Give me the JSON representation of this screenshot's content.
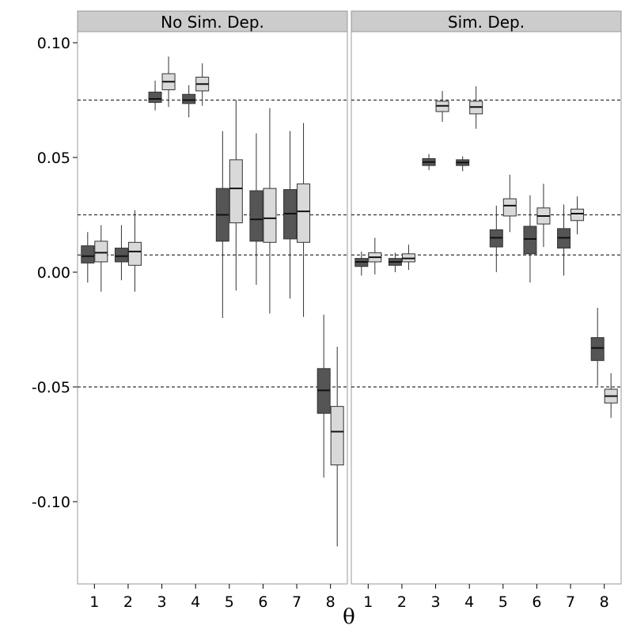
{
  "chart_data": {
    "type": "boxplot",
    "title": "",
    "xlabel": "θ",
    "ylabel": "",
    "ylim": [
      -0.14,
      0.115
    ],
    "grid": false,
    "legend": "none",
    "categories": [
      "1",
      "2",
      "3",
      "4",
      "5",
      "6",
      "7",
      "8"
    ],
    "y_ticks": [
      {
        "value": 0.1,
        "label": "0.10"
      },
      {
        "value": 0.05,
        "label": "0.05"
      },
      {
        "value": 0.0,
        "label": "0.00"
      },
      {
        "value": -0.05,
        "label": "-0.05"
      },
      {
        "value": -0.1,
        "label": "-0.10"
      }
    ],
    "reference_lines": [
      0.075,
      0.025,
      0.0075,
      -0.05
    ],
    "colors": {
      "dark_box": "#555555",
      "light_box": "#d9d9d9",
      "strip": "#cccccc",
      "panel_border": "#999999"
    },
    "panels": [
      {
        "title": "No Sim. Dep.",
        "series": [
          {
            "fill": "dark",
            "boxes": [
              {
                "min": -0.0045,
                "q1": 0.004,
                "median": 0.007,
                "q3": 0.0115,
                "max": 0.0175
              },
              {
                "min": -0.0035,
                "q1": 0.0045,
                "median": 0.007,
                "q3": 0.0105,
                "max": 0.0205
              },
              {
                "min": 0.0705,
                "q1": 0.074,
                "median": 0.0755,
                "q3": 0.0785,
                "max": 0.0835
              },
              {
                "min": 0.0675,
                "q1": 0.0735,
                "median": 0.075,
                "q3": 0.0775,
                "max": 0.0815
              },
              {
                "min": -0.02,
                "q1": 0.0135,
                "median": 0.025,
                "q3": 0.0365,
                "max": 0.0615
              },
              {
                "min": -0.0055,
                "q1": 0.0135,
                "median": 0.023,
                "q3": 0.0355,
                "max": 0.0605
              },
              {
                "min": -0.0115,
                "q1": 0.0145,
                "median": 0.0255,
                "q3": 0.036,
                "max": 0.0615
              },
              {
                "min": -0.0895,
                "q1": -0.0615,
                "median": -0.0515,
                "q3": -0.042,
                "max": -0.0185
              }
            ]
          },
          {
            "fill": "light",
            "boxes": [
              {
                "min": -0.0085,
                "q1": 0.0045,
                "median": 0.0085,
                "q3": 0.0135,
                "max": 0.0205
              },
              {
                "min": -0.0085,
                "q1": 0.003,
                "median": 0.009,
                "q3": 0.013,
                "max": 0.027
              },
              {
                "min": 0.072,
                "q1": 0.0795,
                "median": 0.083,
                "q3": 0.0865,
                "max": 0.094
              },
              {
                "min": 0.0725,
                "q1": 0.079,
                "median": 0.082,
                "q3": 0.085,
                "max": 0.091
              },
              {
                "min": -0.008,
                "q1": 0.0215,
                "median": 0.0365,
                "q3": 0.049,
                "max": 0.075
              },
              {
                "min": -0.018,
                "q1": 0.013,
                "median": 0.0235,
                "q3": 0.0365,
                "max": 0.0715
              },
              {
                "min": -0.0195,
                "q1": 0.013,
                "median": 0.0265,
                "q3": 0.0385,
                "max": 0.065
              },
              {
                "min": -0.1195,
                "q1": -0.084,
                "median": -0.0695,
                "q3": -0.0585,
                "max": -0.0325
              }
            ]
          }
        ]
      },
      {
        "title": "Sim. Dep.",
        "series": [
          {
            "fill": "dark",
            "boxes": [
              {
                "min": -0.0015,
                "q1": 0.0025,
                "median": 0.0045,
                "q3": 0.006,
                "max": 0.009
              },
              {
                "min": 0.0,
                "q1": 0.003,
                "median": 0.0045,
                "q3": 0.006,
                "max": 0.0085
              },
              {
                "min": 0.0445,
                "q1": 0.0465,
                "median": 0.048,
                "q3": 0.0495,
                "max": 0.0515
              },
              {
                "min": 0.044,
                "q1": 0.0465,
                "median": 0.0478,
                "q3": 0.049,
                "max": 0.0505
              },
              {
                "min": 0.0,
                "q1": 0.011,
                "median": 0.015,
                "q3": 0.0185,
                "max": 0.029
              },
              {
                "min": -0.0045,
                "q1": 0.008,
                "median": 0.0145,
                "q3": 0.02,
                "max": 0.0335
              },
              {
                "min": -0.0015,
                "q1": 0.0105,
                "median": 0.015,
                "q3": 0.019,
                "max": 0.0295
              },
              {
                "min": -0.0495,
                "q1": -0.0385,
                "median": -0.033,
                "q3": -0.0285,
                "max": -0.0155
              }
            ]
          },
          {
            "fill": "light",
            "boxes": [
              {
                "min": -0.001,
                "q1": 0.0045,
                "median": 0.0065,
                "q3": 0.0085,
                "max": 0.015
              },
              {
                "min": 0.001,
                "q1": 0.0045,
                "median": 0.006,
                "q3": 0.008,
                "max": 0.012
              },
              {
                "min": 0.0655,
                "q1": 0.07,
                "median": 0.0725,
                "q3": 0.0745,
                "max": 0.079
              },
              {
                "min": 0.0625,
                "q1": 0.069,
                "median": 0.072,
                "q3": 0.0745,
                "max": 0.081
              },
              {
                "min": 0.0175,
                "q1": 0.0245,
                "median": 0.029,
                "q3": 0.032,
                "max": 0.0425
              },
              {
                "min": 0.011,
                "q1": 0.021,
                "median": 0.0245,
                "q3": 0.028,
                "max": 0.0385
              },
              {
                "min": 0.0165,
                "q1": 0.0225,
                "median": 0.0255,
                "q3": 0.0275,
                "max": 0.033
              },
              {
                "min": -0.0635,
                "q1": -0.057,
                "median": -0.054,
                "q3": -0.051,
                "max": -0.044
              }
            ]
          }
        ]
      }
    ]
  }
}
